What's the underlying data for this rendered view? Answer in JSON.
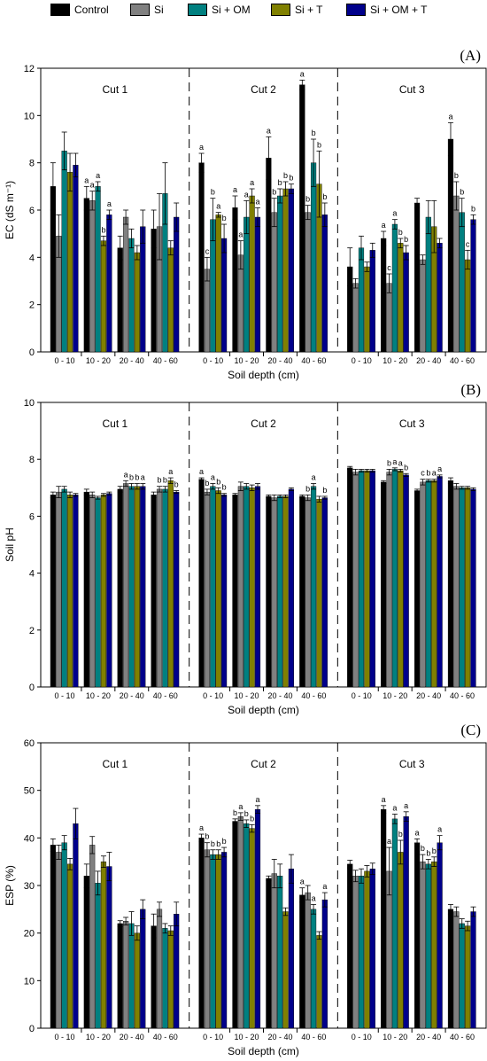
{
  "legend": [
    {
      "name": "Control",
      "color": "#000000"
    },
    {
      "name": "Si",
      "color": "#808080"
    },
    {
      "name": "Si + OM",
      "color": "#008080"
    },
    {
      "name": "Si + T",
      "color": "#808000"
    },
    {
      "name": "Si + OM + T",
      "color": "#00008b"
    }
  ],
  "chart_data": [
    {
      "type": "bar",
      "panel_label": "(A)",
      "ylabel": "EC (dS m⁻¹)",
      "xlabel": "Soil depth (cm)",
      "ylim": [
        0,
        12
      ],
      "yticks": [
        0,
        2,
        4,
        6,
        8,
        10,
        12
      ],
      "groups": [
        "Cut 1",
        "Cut 2",
        "Cut 3"
      ],
      "categories": [
        "0 - 10",
        "10 - 20",
        "20 - 40",
        "40 - 60"
      ],
      "series": [
        {
          "name": "Control",
          "values": [
            [
              7.0,
              6.5,
              4.4,
              5.2
            ],
            [
              8.0,
              6.1,
              8.2,
              11.3
            ],
            [
              3.6,
              4.8,
              6.3,
              9.0
            ]
          ],
          "errors": [
            [
              1.0,
              0.5,
              0.5,
              0.8
            ],
            [
              0.4,
              0.5,
              0.9,
              0.2
            ],
            [
              0.8,
              0.3,
              0.2,
              0.7
            ]
          ],
          "letters": [
            [
              "",
              "a",
              "",
              ""
            ],
            [
              "a",
              "a",
              "a",
              "a"
            ],
            [
              "",
              "a",
              "",
              "a"
            ]
          ]
        },
        {
          "name": "Si",
          "values": [
            [
              4.9,
              6.4,
              5.7,
              5.3
            ],
            [
              3.5,
              4.1,
              5.9,
              5.9
            ],
            [
              2.9,
              2.9,
              3.9,
              6.6
            ]
          ],
          "errors": [
            [
              0.9,
              0.4,
              0.3,
              1.4
            ],
            [
              0.5,
              0.6,
              0.6,
              0.3
            ],
            [
              0.2,
              0.4,
              0.2,
              0.6
            ]
          ],
          "letters": [
            [
              "",
              "a",
              "",
              ""
            ],
            [
              "c",
              "a",
              "b",
              "b"
            ],
            [
              "",
              "c",
              "",
              "b"
            ]
          ]
        },
        {
          "name": "Si + OM",
          "values": [
            [
              8.5,
              7.0,
              4.8,
              6.7
            ],
            [
              5.6,
              5.7,
              6.6,
              8.0
            ],
            [
              4.4,
              5.4,
              5.7,
              5.9
            ]
          ],
          "errors": [
            [
              0.8,
              0.2,
              0.4,
              1.3
            ],
            [
              0.9,
              0.7,
              0.3,
              1.0
            ],
            [
              0.5,
              0.2,
              0.7,
              0.6
            ]
          ],
          "letters": [
            [
              "",
              "a",
              "",
              ""
            ],
            [
              "b",
              "a",
              "b",
              "b"
            ],
            [
              "",
              "a",
              "",
              "b"
            ]
          ]
        },
        {
          "name": "Si + T",
          "values": [
            [
              7.6,
              4.7,
              4.2,
              4.4
            ],
            [
              5.8,
              6.6,
              6.9,
              7.1
            ],
            [
              3.6,
              4.6,
              5.3,
              3.9
            ]
          ],
          "errors": [
            [
              0.8,
              0.2,
              0.3,
              0.3
            ],
            [
              0.1,
              0.3,
              0.3,
              1.4
            ],
            [
              0.2,
              0.2,
              1.1,
              0.4
            ]
          ],
          "letters": [
            [
              "",
              "b",
              "",
              ""
            ],
            [
              "a",
              "a",
              "b",
              "b"
            ],
            [
              "",
              "b",
              "",
              "c"
            ]
          ]
        },
        {
          "name": "Si + OM + T",
          "values": [
            [
              7.9,
              5.8,
              5.3,
              5.7
            ],
            [
              4.8,
              5.7,
              6.9,
              5.8
            ],
            [
              4.3,
              4.2,
              4.6,
              5.6
            ]
          ],
          "errors": [
            [
              0.5,
              0.2,
              0.7,
              0.6
            ],
            [
              0.6,
              0.4,
              0.2,
              0.5
            ],
            [
              0.3,
              0.3,
              0.2,
              0.2
            ]
          ],
          "letters": [
            [
              "",
              "a",
              "",
              ""
            ],
            [
              "b",
              "a",
              "b",
              "b"
            ],
            [
              "",
              "b",
              "",
              "b"
            ]
          ]
        }
      ]
    },
    {
      "type": "bar",
      "panel_label": "(B)",
      "ylabel": "Soil pH",
      "xlabel": "Soil depth (cm)",
      "ylim": [
        0,
        10
      ],
      "yticks": [
        0,
        2,
        4,
        6,
        8,
        10
      ],
      "groups": [
        "Cut 1",
        "Cut 2",
        "Cut 3"
      ],
      "categories": [
        "0 - 10",
        "10 - 20",
        "20 - 40",
        "40 - 60"
      ],
      "series": [
        {
          "name": "Control",
          "values": [
            [
              6.75,
              6.85,
              6.95,
              6.75
            ],
            [
              7.3,
              6.75,
              6.7,
              6.7
            ],
            [
              7.7,
              7.2,
              6.9,
              7.25
            ]
          ],
          "errors": [
            [
              0.1,
              0.1,
              0.1,
              0.1
            ],
            [
              0.05,
              0.05,
              0.05,
              0.05
            ],
            [
              0.05,
              0.05,
              0.05,
              0.1
            ]
          ],
          "letters": [
            [
              "",
              "",
              "",
              ""
            ],
            [
              "a",
              "",
              "",
              ""
            ],
            [
              "",
              "",
              "",
              ""
            ]
          ]
        },
        {
          "name": "Si",
          "values": [
            [
              6.85,
              6.75,
              7.15,
              6.95
            ],
            [
              6.85,
              7.05,
              6.65,
              6.65
            ],
            [
              7.55,
              7.55,
              7.2,
              7.05
            ]
          ],
          "errors": [
            [
              0.2,
              0.1,
              0.1,
              0.1
            ],
            [
              0.1,
              0.15,
              0.1,
              0.1
            ],
            [
              0.1,
              0.1,
              0.1,
              0.1
            ]
          ],
          "letters": [
            [
              "",
              "",
              "a",
              "b"
            ],
            [
              "b",
              "",
              "",
              "b"
            ],
            [
              "",
              "b",
              "c",
              ""
            ]
          ]
        },
        {
          "name": "Si + OM",
          "values": [
            [
              6.95,
              6.65,
              7.05,
              6.95
            ],
            [
              7.05,
              7.05,
              6.7,
              7.05
            ],
            [
              7.6,
              7.65,
              7.25,
              7.0
            ]
          ],
          "errors": [
            [
              0.1,
              0.05,
              0.1,
              0.1
            ],
            [
              0.1,
              0.1,
              0.05,
              0.1
            ],
            [
              0.05,
              0.05,
              0.05,
              0.05
            ]
          ],
          "letters": [
            [
              "",
              "",
              "b",
              "b"
            ],
            [
              "a",
              "",
              "",
              "a"
            ],
            [
              "",
              "a",
              "b",
              ""
            ]
          ]
        },
        {
          "name": "Si + T",
          "values": [
            [
              6.75,
              6.75,
              7.05,
              7.25
            ],
            [
              6.9,
              7.0,
              6.7,
              6.6
            ],
            [
              7.6,
              7.6,
              7.25,
              7.0
            ]
          ],
          "errors": [
            [
              0.1,
              0.05,
              0.1,
              0.1
            ],
            [
              0.1,
              0.1,
              0.05,
              0.1
            ],
            [
              0.05,
              0.05,
              0.05,
              0.05
            ]
          ],
          "letters": [
            [
              "",
              "",
              "b",
              "a"
            ],
            [
              "b",
              "",
              "",
              ""
            ],
            [
              "",
              "a",
              "a",
              ""
            ]
          ]
        },
        {
          "name": "Si + OM + T",
          "values": [
            [
              6.75,
              6.8,
              7.05,
              6.85
            ],
            [
              6.75,
              7.05,
              6.95,
              6.65
            ],
            [
              7.6,
              7.45,
              7.4,
              6.95
            ]
          ],
          "errors": [
            [
              0.05,
              0.05,
              0.1,
              0.05
            ],
            [
              0.05,
              0.1,
              0.05,
              0.05
            ],
            [
              0.05,
              0.05,
              0.05,
              0.05
            ]
          ],
          "letters": [
            [
              "",
              "",
              "a",
              "b"
            ],
            [
              "b",
              "",
              "",
              "b"
            ],
            [
              "",
              "b",
              "a",
              ""
            ]
          ]
        }
      ]
    },
    {
      "type": "bar",
      "panel_label": "(C)",
      "ylabel": "ESP (%)",
      "xlabel": "Soil depth (cm)",
      "ylim": [
        0,
        60
      ],
      "yticks": [
        0,
        10,
        20,
        30,
        40,
        50,
        60
      ],
      "groups": [
        "Cut 1",
        "Cut 2",
        "Cut 3"
      ],
      "categories": [
        "0 - 10",
        "10 - 20",
        "20 - 40",
        "40 - 60"
      ],
      "series": [
        {
          "name": "Control",
          "values": [
            [
              38.5,
              32.0,
              22.0,
              21.5
            ],
            [
              40.0,
              43.5,
              31.5,
              28.0
            ],
            [
              34.5,
              46.0,
              39.0,
              25.0
            ]
          ],
          "errors": [
            [
              1.3,
              2.5,
              0.6,
              2.5
            ],
            [
              0.8,
              0.5,
              0.5,
              1.5
            ],
            [
              0.8,
              0.8,
              0.8,
              1.0
            ]
          ],
          "letters": [
            [
              "",
              "",
              "",
              ""
            ],
            [
              "a",
              "b",
              "",
              "a"
            ],
            [
              "",
              "a",
              "a",
              ""
            ]
          ]
        },
        {
          "name": "Si",
          "values": [
            [
              37.0,
              38.5,
              22.5,
              25.0
            ],
            [
              37.5,
              44.5,
              32.5,
              28.5
            ],
            [
              32.0,
              33.0,
              35.0,
              24.5
            ]
          ],
          "errors": [
            [
              1.5,
              1.8,
              0.8,
              1.5
            ],
            [
              1.5,
              0.8,
              3.0,
              1.5
            ],
            [
              1.2,
              5.0,
              1.5,
              1.0
            ]
          ],
          "letters": [
            [
              "",
              "",
              "",
              ""
            ],
            [
              "b",
              "a",
              "",
              ""
            ],
            [
              "",
              "a",
              "b",
              ""
            ]
          ]
        },
        {
          "name": "Si + OM",
          "values": [
            [
              39.0,
              30.5,
              22.0,
              21.0
            ],
            [
              36.5,
              43.0,
              32.0,
              25.0
            ],
            [
              32.0,
              44.0,
              34.5,
              22.0
            ]
          ],
          "errors": [
            [
              1.5,
              2.5,
              2.5,
              1.0
            ],
            [
              1.0,
              0.8,
              2.5,
              1.0
            ],
            [
              1.5,
              1.0,
              1.0,
              1.0
            ]
          ],
          "letters": [
            [
              "",
              "",
              "",
              ""
            ],
            [
              "b",
              "b",
              "",
              "a"
            ],
            [
              "",
              "a",
              "b",
              ""
            ]
          ]
        },
        {
          "name": "Si + T",
          "values": [
            [
              34.5,
              35.0,
              20.0,
              20.5
            ],
            [
              36.5,
              42.0,
              24.5,
              19.5
            ],
            [
              33.0,
              37.0,
              35.0,
              21.5
            ]
          ],
          "errors": [
            [
              1.2,
              1.2,
              1.5,
              1.0
            ],
            [
              1.0,
              0.8,
              0.8,
              0.8
            ],
            [
              1.2,
              2.5,
              1.0,
              1.0
            ]
          ],
          "letters": [
            [
              "",
              "",
              "",
              ""
            ],
            [
              "b",
              "b",
              "",
              ""
            ],
            [
              "",
              "b",
              "b",
              ""
            ]
          ]
        },
        {
          "name": "Si + OM + T",
          "values": [
            [
              43.0,
              34.0,
              25.0,
              24.0
            ],
            [
              37.0,
              46.0,
              33.5,
              27.0
            ],
            [
              33.5,
              44.5,
              39.0,
              24.5
            ]
          ],
          "errors": [
            [
              3.2,
              3.0,
              2.0,
              2.5
            ],
            [
              1.0,
              0.8,
              3.0,
              1.5
            ],
            [
              1.2,
              1.0,
              1.5,
              1.0
            ]
          ],
          "letters": [
            [
              "",
              "",
              "",
              ""
            ],
            [
              "b",
              "a",
              "",
              "a"
            ],
            [
              "",
              "a",
              "a",
              ""
            ]
          ]
        }
      ]
    }
  ]
}
